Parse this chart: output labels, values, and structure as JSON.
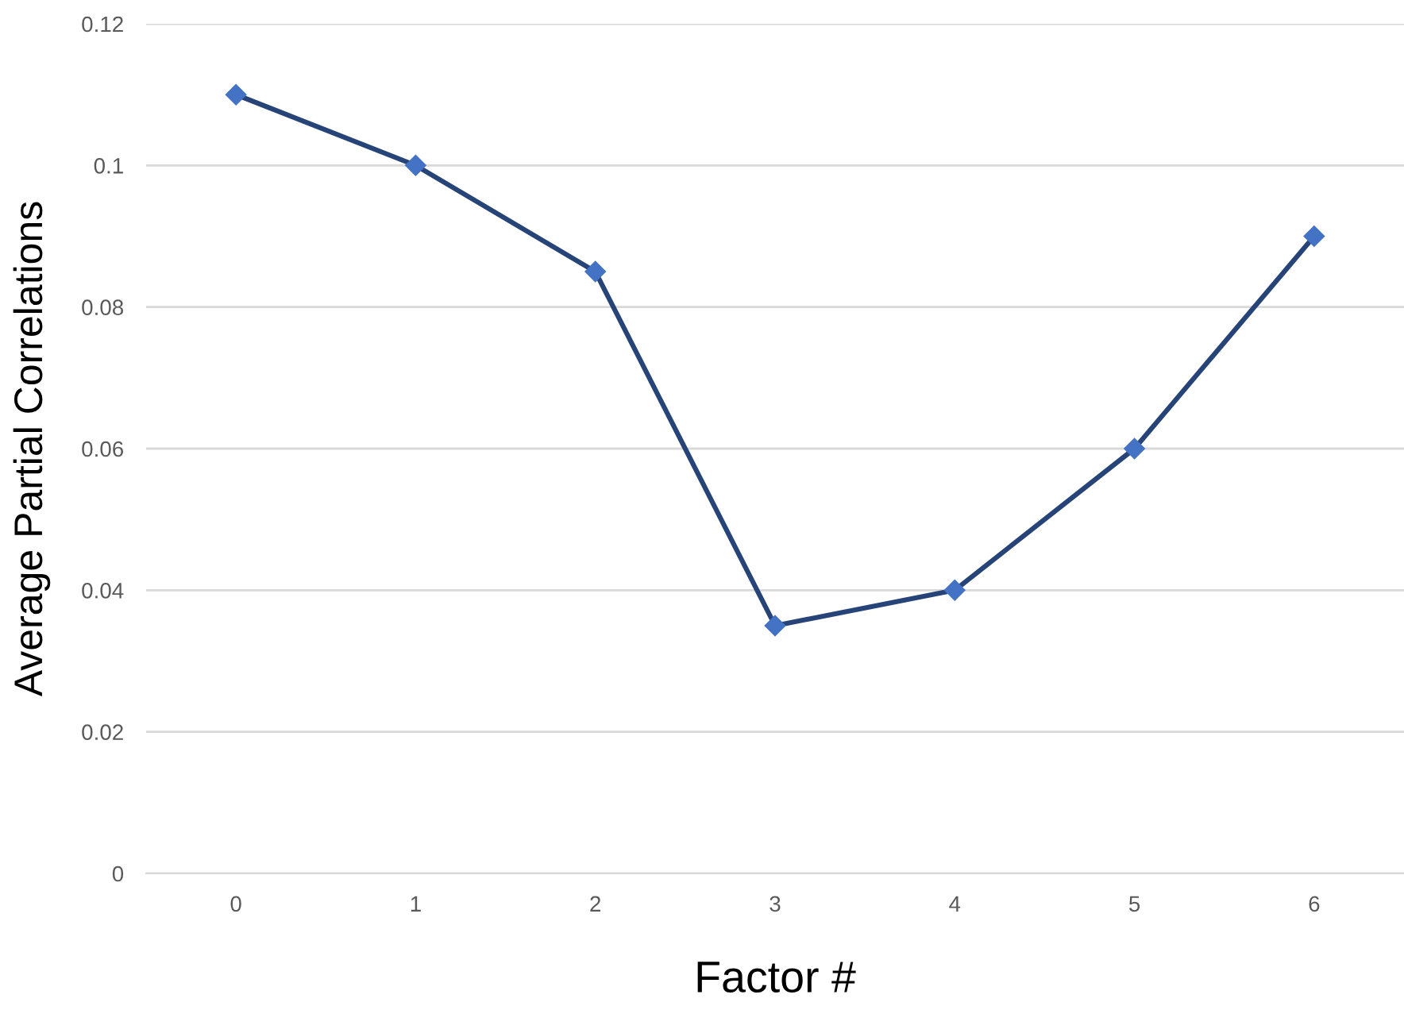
{
  "chart_data": {
    "type": "line",
    "xlabel": "Factor #",
    "ylabel": "Average Partial Correlations",
    "categories": [
      "0",
      "1",
      "2",
      "3",
      "4",
      "5",
      "6"
    ],
    "series": [
      {
        "color": "#264478",
        "values": [
          0.11,
          0.1,
          0.085,
          0.035,
          0.04,
          0.06,
          0.09
        ]
      }
    ],
    "ylim": [
      0,
      0.12
    ],
    "yticks": [
      0,
      0.02,
      0.04,
      0.06,
      0.08,
      0.1,
      0.12
    ],
    "grid": "y",
    "marker": "diamond",
    "line_style": "solid",
    "legend": false
  }
}
